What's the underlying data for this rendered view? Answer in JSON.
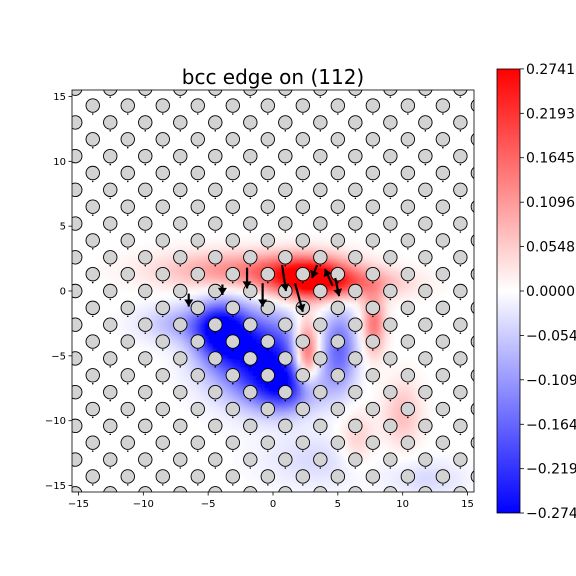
{
  "chart_data": {
    "type": "heatmap",
    "title": "bcc edge on (112)",
    "xlim": [
      -15.5,
      15.5
    ],
    "ylim": [
      -15.5,
      15.5
    ],
    "x_ticks": [
      -15,
      -10,
      -5,
      0,
      5,
      10,
      15
    ],
    "y_ticks": [
      -15,
      -10,
      -5,
      0,
      5,
      10,
      15
    ],
    "x_tick_labels": [
      "−15",
      "−10",
      "−5",
      "0",
      "5",
      "10",
      "15"
    ],
    "y_tick_labels": [
      "−15",
      "−10",
      "−5",
      "0",
      "5",
      "10",
      "15"
    ],
    "colormap": "bwr",
    "colors": {
      "min": "#0000ff",
      "mid": "#ffffff",
      "max": "#ff0000"
    },
    "clim": [
      -0.274,
      0.274
    ],
    "colorbar_ticks": [
      0.2741,
      0.2193,
      0.1645,
      0.1096,
      0.0548,
      0.0,
      -0.0548,
      -0.1096,
      -0.1645,
      -0.2193,
      -0.274
    ],
    "colorbar_tick_labels": [
      "0.2741",
      "0.2193",
      "0.1645",
      "0.1096",
      "0.0548",
      "0.0000",
      "−0.0548",
      "−0.1096",
      "−0.1645",
      "−0.2193",
      "−0.2741"
    ],
    "atoms": {
      "lattice_a1": [
        2.7,
        0.0
      ],
      "lattice_a2": [
        1.35,
        1.3
      ],
      "origin": [
        -0.4,
        -1.3
      ],
      "fill": "#d3d3d3",
      "edge": "#000000"
    },
    "strain_features": [
      {
        "x": 2.8,
        "y": 1.0,
        "sx": 2.2,
        "sy": 1.1,
        "amp": 0.27
      },
      {
        "x": -2.0,
        "y": 1.6,
        "sx": 4.5,
        "sy": 1.0,
        "amp": 0.13
      },
      {
        "x": 6.0,
        "y": 0.6,
        "sx": 3.0,
        "sy": 0.8,
        "amp": 0.11
      },
      {
        "x": 2.6,
        "y": -4.8,
        "sx": 0.7,
        "sy": 1.8,
        "amp": 0.25
      },
      {
        "x": 7.8,
        "y": -2.5,
        "sx": 0.6,
        "sy": 1.6,
        "amp": 0.15
      },
      {
        "x": 10.0,
        "y": -9.5,
        "sx": 1.0,
        "sy": 1.8,
        "amp": 0.07
      },
      {
        "x": 6.5,
        "y": -11.5,
        "sx": 1.0,
        "sy": 1.5,
        "amp": 0.06
      },
      {
        "x": -1.0,
        "y": -5.0,
        "sx": 2.6,
        "sy": 2.2,
        "amp": -0.27
      },
      {
        "x": -4.0,
        "y": -3.0,
        "sx": 1.4,
        "sy": 1.5,
        "amp": -0.25
      },
      {
        "x": 1.0,
        "y": -7.5,
        "sx": 1.8,
        "sy": 1.3,
        "amp": -0.18
      },
      {
        "x": 5.2,
        "y": -4.5,
        "sx": 0.9,
        "sy": 2.2,
        "amp": -0.15
      },
      {
        "x": -7.0,
        "y": -2.5,
        "sx": 2.2,
        "sy": 1.0,
        "amp": -0.08
      },
      {
        "x": 3.5,
        "y": -13.0,
        "sx": 3.0,
        "sy": 1.5,
        "amp": -0.04
      },
      {
        "x": 12.0,
        "y": -14.5,
        "sx": 2.0,
        "sy": 1.0,
        "amp": -0.04
      }
    ],
    "displacement_vectors": [
      {
        "x": -2.0,
        "y": 1.8,
        "dx": 0.0,
        "dy": -1.6
      },
      {
        "x": -0.8,
        "y": 0.6,
        "dx": 0.0,
        "dy": -1.8
      },
      {
        "x": 0.7,
        "y": 2.0,
        "dx": 0.3,
        "dy": -2.0
      },
      {
        "x": 1.7,
        "y": 0.6,
        "dx": 0.6,
        "dy": -2.2
      },
      {
        "x": 3.4,
        "y": 2.0,
        "dx": -0.4,
        "dy": -1.0
      },
      {
        "x": 4.6,
        "y": 0.4,
        "dx": -0.6,
        "dy": 1.3
      },
      {
        "x": 4.8,
        "y": 1.0,
        "dx": 0.3,
        "dy": -1.4
      },
      {
        "x": -6.5,
        "y": -0.2,
        "dx": 0.0,
        "dy": -1.0
      },
      {
        "x": -3.9,
        "y": 0.5,
        "dx": 0.0,
        "dy": -0.8
      }
    ]
  }
}
